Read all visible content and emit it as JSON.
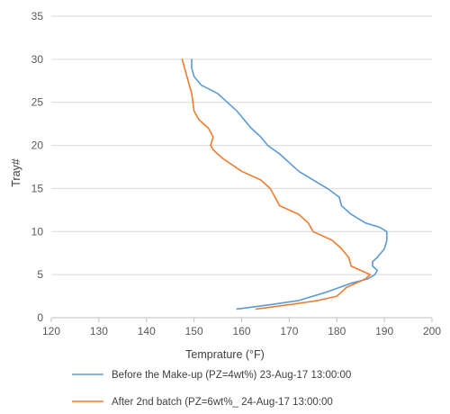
{
  "chart_data": {
    "type": "line",
    "xlabel": "Temprature (°F)",
    "ylabel": "Tray#",
    "xlim": [
      120,
      200
    ],
    "ylim": [
      0,
      35
    ],
    "xticks": [
      120,
      130,
      140,
      150,
      160,
      170,
      180,
      190,
      200
    ],
    "yticks": [
      0,
      5,
      10,
      15,
      20,
      25,
      30,
      35
    ],
    "grid": "horizontal",
    "legend_position": "bottom",
    "series": [
      {
        "name": "Before the Make-up (PZ=4wt%) 23-Aug-17 13:00:00",
        "color": "#5b9bd5",
        "points": [
          [
            159,
            1
          ],
          [
            166,
            1.5
          ],
          [
            172,
            2
          ],
          [
            178,
            3
          ],
          [
            183,
            4
          ],
          [
            186.5,
            4.5
          ],
          [
            188,
            5
          ],
          [
            188.5,
            5.5
          ],
          [
            187.5,
            6
          ],
          [
            187.5,
            6.5
          ],
          [
            188.5,
            7
          ],
          [
            190,
            8
          ],
          [
            190.5,
            9
          ],
          [
            190.5,
            10
          ],
          [
            189,
            10.5
          ],
          [
            186,
            11
          ],
          [
            183,
            12
          ],
          [
            181,
            13
          ],
          [
            180.5,
            14
          ],
          [
            178,
            15
          ],
          [
            172,
            17
          ],
          [
            168,
            19
          ],
          [
            165.5,
            20
          ],
          [
            164,
            21
          ],
          [
            162,
            22
          ],
          [
            159,
            24
          ],
          [
            155,
            26
          ],
          [
            151.5,
            27
          ],
          [
            150,
            28
          ],
          [
            149.5,
            29
          ],
          [
            149.5,
            30
          ]
        ]
      },
      {
        "name": "After 2nd batch (PZ=6wt%_ 24-Aug-17 13:00:00",
        "color": "#ed7d31",
        "points": [
          [
            163,
            1
          ],
          [
            170,
            1.5
          ],
          [
            176,
            2
          ],
          [
            180,
            2.5
          ],
          [
            182,
            3.5
          ],
          [
            186,
            4.5
          ],
          [
            187,
            5
          ],
          [
            185,
            5.5
          ],
          [
            183,
            6
          ],
          [
            182.5,
            7
          ],
          [
            181,
            8
          ],
          [
            180,
            8.5
          ],
          [
            179,
            9
          ],
          [
            175,
            10
          ],
          [
            174,
            11
          ],
          [
            172,
            12
          ],
          [
            168,
            13
          ],
          [
            166,
            15
          ],
          [
            164,
            16
          ],
          [
            160,
            17
          ],
          [
            156,
            18.5
          ],
          [
            154,
            19.5
          ],
          [
            153.5,
            20
          ],
          [
            154,
            21
          ],
          [
            153,
            22
          ],
          [
            151,
            23
          ],
          [
            150,
            24
          ],
          [
            149.5,
            26
          ],
          [
            148.5,
            28
          ],
          [
            147.5,
            30
          ]
        ]
      }
    ]
  }
}
